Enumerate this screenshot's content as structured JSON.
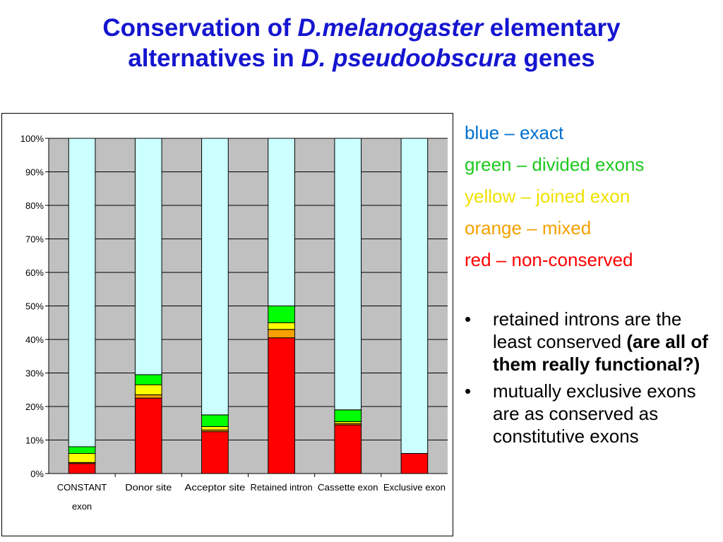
{
  "title": {
    "line1_a": "Conservation of ",
    "line1_b": "D.melanogaster",
    "line1_c": " elementary",
    "line2_a": "alternatives in ",
    "line2_b": "D. pseudoobscura",
    "line2_c": " genes"
  },
  "legend": [
    {
      "text": "blue – exact",
      "color": "#0070d0"
    },
    {
      "text": "green – divided exons",
      "color": "#1ec81e"
    },
    {
      "text": "yellow – joined exon",
      "color": "#f0e000"
    },
    {
      "text": "orange – mixed",
      "color": "#f5a000"
    },
    {
      "text": "red – non-conserved",
      "color": "#ff0000"
    }
  ],
  "bullets": [
    {
      "text": "retained introns are the least conserved ",
      "bold": "(are all of them really functional?)"
    },
    {
      "text": "mutually exclusive exons are as conserved as constitutive exons",
      "bold": ""
    }
  ],
  "bullet_glyph": "•",
  "chart_data": {
    "type": "bar",
    "stacked": true,
    "percent": true,
    "categories": [
      "CONSTANT exon",
      "Donor site",
      "Acceptor site",
      "Retained intron",
      "Cassette exon",
      "Exclusive exon"
    ],
    "series": [
      {
        "color": "#ff0000",
        "values": [
          3,
          22.5,
          12.5,
          40.5,
          14.5,
          6
        ]
      },
      {
        "color": "#f5a000",
        "values": [
          0.3,
          1,
          0.5,
          2.5,
          0.4,
          0
        ]
      },
      {
        "color": "#ffff00",
        "values": [
          2.7,
          3,
          1,
          2,
          0.6,
          0
        ]
      },
      {
        "color": "#00ff00",
        "values": [
          2,
          3,
          3.5,
          5,
          3.5,
          0
        ]
      },
      {
        "color": "#ccffff",
        "values": [
          92,
          70.5,
          82.5,
          50,
          81,
          94
        ]
      }
    ],
    "ylim": [
      0,
      100
    ],
    "yticks": [
      "0%",
      "10%",
      "20%",
      "30%",
      "40%",
      "50%",
      "60%",
      "70%",
      "80%",
      "90%",
      "100%"
    ],
    "plot_background": "#c0c0c0",
    "grid": true
  }
}
